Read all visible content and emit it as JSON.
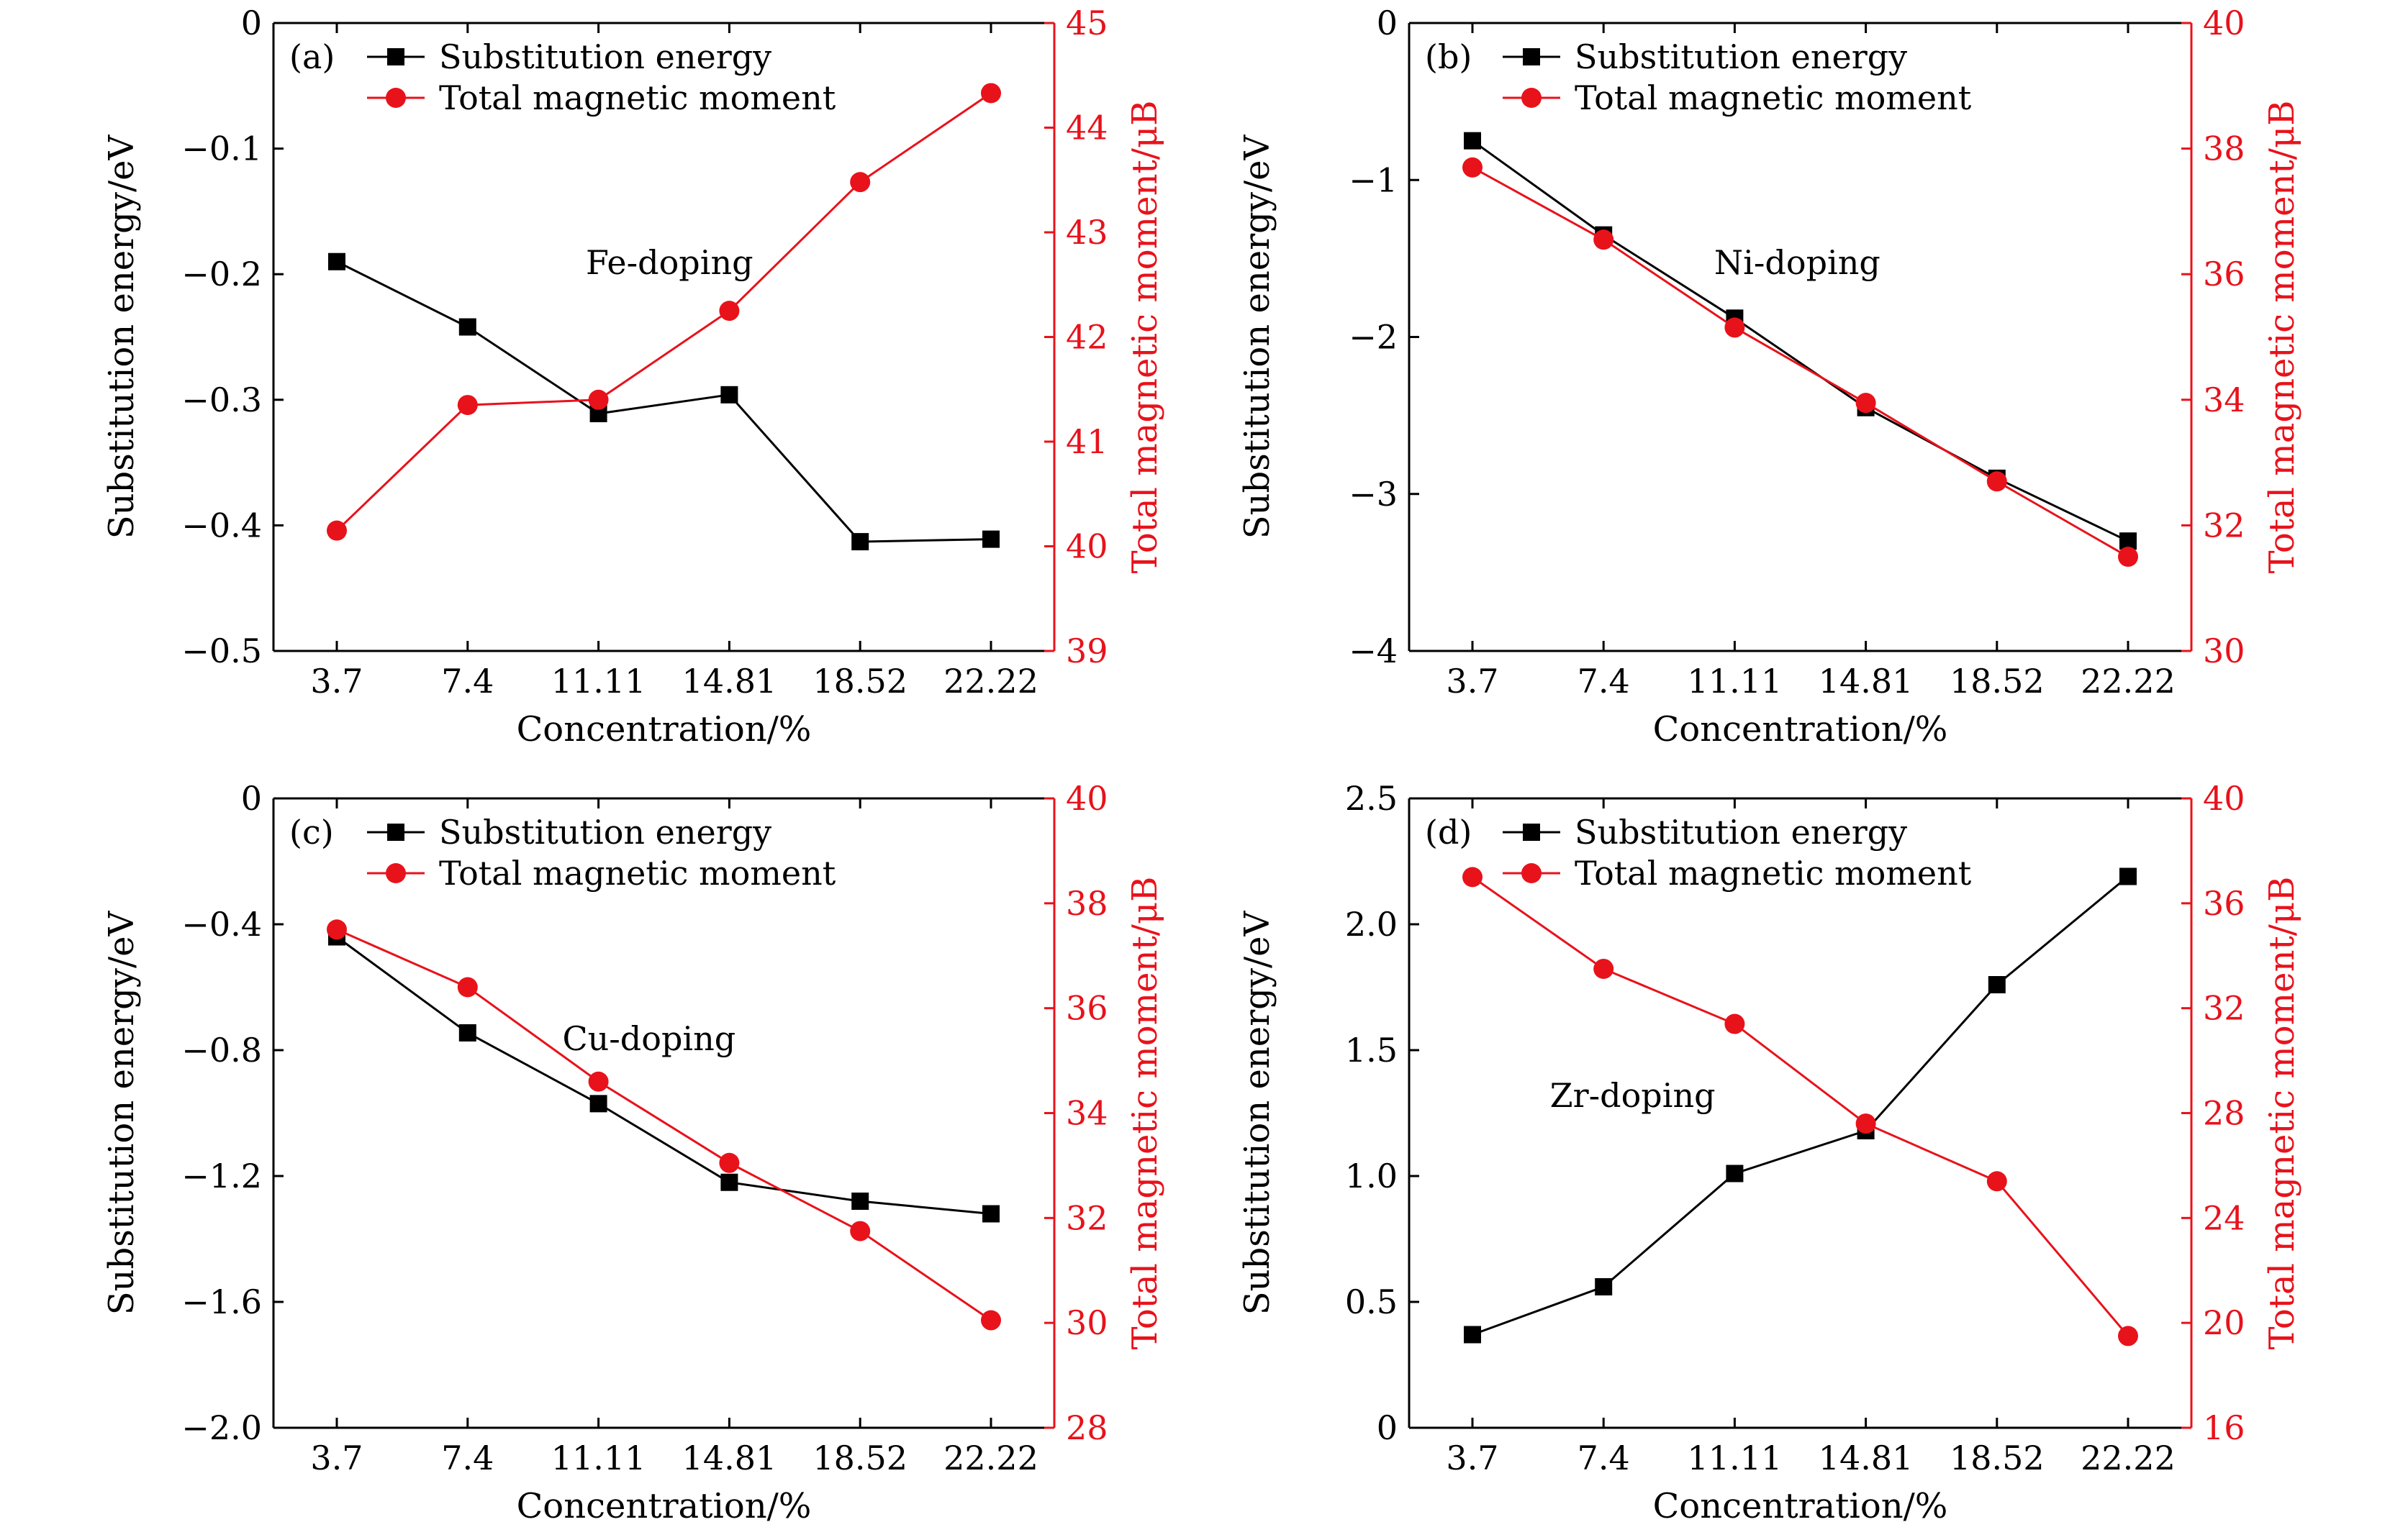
{
  "colors": {
    "energy": "#000000",
    "moment": "#e8121b",
    "frame": "#000000"
  },
  "chart_data": [
    {
      "type": "line",
      "panel": "(a)",
      "annotation": "Fe-doping",
      "xlabel": "Concentration/%",
      "ylabel_left": "Substitution energy/eV",
      "ylabel_right": "Total magnetic moment/μB",
      "categories": [
        "3.7",
        "7.4",
        "11.11",
        "14.81",
        "18.52",
        "22.22"
      ],
      "left_axis": {
        "ylim": [
          -0.5,
          0
        ],
        "ticks": [
          0,
          -0.1,
          -0.2,
          -0.3,
          -0.4,
          -0.5
        ],
        "tick_labels": [
          "0",
          "−0.1",
          "−0.2",
          "−0.3",
          "−0.4",
          "−0.5"
        ]
      },
      "right_axis": {
        "ylim": [
          39,
          45
        ],
        "ticks": [
          39,
          40,
          41,
          42,
          43,
          44,
          45
        ],
        "tick_labels": [
          "39",
          "40",
          "41",
          "42",
          "43",
          "44",
          "45"
        ]
      },
      "series": [
        {
          "name": "Substitution energy",
          "axis": "left",
          "marker": "square",
          "values": [
            -0.19,
            -0.242,
            -0.311,
            -0.296,
            -0.413,
            -0.411
          ]
        },
        {
          "name": "Total magnetic moment",
          "axis": "right",
          "marker": "circle",
          "values": [
            40.15,
            41.35,
            41.4,
            42.25,
            43.48,
            44.33
          ]
        }
      ]
    },
    {
      "type": "line",
      "panel": "(b)",
      "annotation": "Ni-doping",
      "xlabel": "Concentration/%",
      "ylabel_left": "Substitution energy/eV",
      "ylabel_right": "Total magnetic moment/μB",
      "categories": [
        "3.7",
        "7.4",
        "11.11",
        "14.81",
        "18.52",
        "22.22"
      ],
      "left_axis": {
        "ylim": [
          -4,
          0
        ],
        "ticks": [
          0,
          -1,
          -2,
          -3,
          -4
        ],
        "tick_labels": [
          "0",
          "−1",
          "−2",
          "−3",
          "−4"
        ]
      },
      "right_axis": {
        "ylim": [
          30,
          40
        ],
        "ticks": [
          30,
          32,
          34,
          36,
          38,
          40
        ],
        "tick_labels": [
          "30",
          "32",
          "34",
          "36",
          "38",
          "40"
        ]
      },
      "series": [
        {
          "name": "Substitution energy",
          "axis": "left",
          "marker": "square",
          "values": [
            -0.75,
            -1.35,
            -1.88,
            -2.45,
            -2.9,
            -3.3
          ]
        },
        {
          "name": "Total magnetic moment",
          "axis": "right",
          "marker": "circle",
          "values": [
            37.7,
            36.55,
            35.15,
            33.95,
            32.7,
            31.5
          ]
        }
      ]
    },
    {
      "type": "line",
      "panel": "(c)",
      "annotation": "Cu-doping",
      "xlabel": "Concentration/%",
      "ylabel_left": "Substitution energy/eV",
      "ylabel_right": "Total magnetic moment/μB",
      "categories": [
        "3.7",
        "7.4",
        "11.11",
        "14.81",
        "18.52",
        "22.22"
      ],
      "left_axis": {
        "ylim": [
          -2.0,
          0
        ],
        "ticks": [
          0,
          -0.4,
          -0.8,
          -1.2,
          -1.6,
          -2.0
        ],
        "tick_labels": [
          "0",
          "−0.4",
          "−0.8",
          "−1.2",
          "−1.6",
          "−2.0"
        ]
      },
      "right_axis": {
        "ylim": [
          28,
          40
        ],
        "ticks": [
          28,
          30,
          32,
          34,
          36,
          38,
          40
        ],
        "tick_labels": [
          "28",
          "30",
          "32",
          "34",
          "36",
          "38",
          "40"
        ]
      },
      "series": [
        {
          "name": "Substitution energy",
          "axis": "left",
          "marker": "square",
          "values": [
            -0.44,
            -0.745,
            -0.97,
            -1.22,
            -1.28,
            -1.32
          ]
        },
        {
          "name": "Total magnetic moment",
          "axis": "right",
          "marker": "circle",
          "values": [
            37.5,
            36.4,
            34.6,
            33.05,
            31.75,
            30.05
          ]
        }
      ]
    },
    {
      "type": "line",
      "panel": "(d)",
      "annotation": "Zr-doping",
      "xlabel": "Concentration/%",
      "ylabel_left": "Substitution energy/eV",
      "ylabel_right": "Total magnetic moment/μB",
      "categories": [
        "3.7",
        "7.4",
        "11.11",
        "14.81",
        "18.52",
        "22.22"
      ],
      "left_axis": {
        "ylim": [
          0,
          2.5
        ],
        "ticks": [
          0,
          0.5,
          1.0,
          1.5,
          2.0,
          2.5
        ],
        "tick_labels": [
          "0",
          "0.5",
          "1.0",
          "1.5",
          "2.0",
          "2.5"
        ]
      },
      "right_axis": {
        "ylim": [
          16,
          40
        ],
        "ticks": [
          16,
          20,
          24,
          28,
          32,
          36,
          40
        ],
        "tick_labels": [
          "16",
          "20",
          "24",
          "28",
          "32",
          "36",
          "40"
        ]
      },
      "series": [
        {
          "name": "Substitution energy",
          "axis": "left",
          "marker": "square",
          "values": [
            0.37,
            0.56,
            1.01,
            1.18,
            1.76,
            2.19
          ]
        },
        {
          "name": "Total magnetic moment",
          "axis": "right",
          "marker": "circle",
          "values": [
            37.0,
            33.5,
            31.4,
            27.6,
            25.4,
            19.5
          ]
        }
      ]
    }
  ]
}
